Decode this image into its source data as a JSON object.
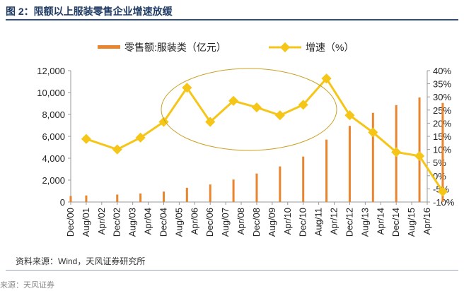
{
  "header": {
    "title": "图 2：限额以上服装零售企业增速放缓"
  },
  "footer": {
    "source": "资料来源：Wind，天风证券研究所",
    "watermark": "来源：天风证券"
  },
  "colors": {
    "bar": "#E8852E",
    "line": "#F5C518",
    "axis": "#999999",
    "ellipse": "#C9A227"
  },
  "chart_data": {
    "type": "bar+line",
    "categories": [
      "Dec/00",
      "Aug/01",
      "Apr/02",
      "Dec/02",
      "Aug/03",
      "Apr/04",
      "Dec/04",
      "Aug/05",
      "Apr/06",
      "Dec/06",
      "Aug/07",
      "Apr/08",
      "Dec/08",
      "Aug/09",
      "Apr/10",
      "Dec/10",
      "Aug/11",
      "Apr/12",
      "Dec/12",
      "Aug/13",
      "Apr/14",
      "Dec/14",
      "Aug/15",
      "Apr/16"
    ],
    "x_tick_labels": [
      "Dec/00",
      "Aug/01",
      "Apr/02",
      "Dec/02",
      "Aug/03",
      "Apr/04",
      "Dec/04",
      "Aug/05",
      "Apr/06",
      "Dec/06",
      "Aug/07",
      "Apr/08",
      "Dec/08",
      "Aug/09",
      "Apr/10",
      "Dec/10",
      "Aug/11",
      "Apr/12",
      "Dec/12",
      "Aug/13",
      "Apr/14",
      "Dec/14",
      "Aug/15",
      "Apr/16"
    ],
    "series": [
      {
        "name": "零售额:服装类（亿元）",
        "type": "bar",
        "axis": "left",
        "x": [
          "Dec/00",
          "Aug/01",
          "Dec/02",
          "Dec/03",
          "Dec/04",
          "Dec/05",
          "Dec/06",
          "Dec/07",
          "Dec/08",
          "Dec/09",
          "Dec/10",
          "Dec/11",
          "Dec/12",
          "Dec/13",
          "Dec/14",
          "Dec/15",
          "Dec/16"
        ],
        "values": [
          550,
          600,
          680,
          780,
          950,
          1300,
          1600,
          2050,
          2600,
          3250,
          4150,
          5700,
          6950,
          8150,
          8850,
          9550,
          9050
        ]
      },
      {
        "name": "增速（%）",
        "type": "line",
        "axis": "right",
        "x": [
          "Aug/01",
          "Dec/02",
          "Dec/03",
          "Dec/04",
          "Dec/05",
          "Dec/06",
          "Dec/07",
          "Dec/08",
          "Dec/09",
          "Dec/10",
          "Dec/11",
          "Dec/12",
          "Dec/13",
          "Dec/14",
          "Dec/15",
          "Dec/16"
        ],
        "values": [
          14,
          10,
          14.5,
          20.5,
          33.5,
          20.5,
          28.5,
          26,
          23,
          27,
          37,
          23,
          16.5,
          9,
          7.5,
          -6
        ]
      }
    ],
    "y_left": {
      "min": 0,
      "max": 12000,
      "ticks": [
        "0",
        "2,000",
        "4,000",
        "6,000",
        "8,000",
        "10,000",
        "12,000"
      ]
    },
    "y_right": {
      "min": -10,
      "max": 40,
      "ticks": [
        "-10%",
        "-5%",
        "0%",
        "5%",
        "10%",
        "15%",
        "20%",
        "25%",
        "30%",
        "35%",
        "40%"
      ]
    },
    "legend": {
      "bar_label": "零售额:服装类（亿元）",
      "line_label": "增速（%）",
      "placement": "top"
    },
    "grid": false
  }
}
